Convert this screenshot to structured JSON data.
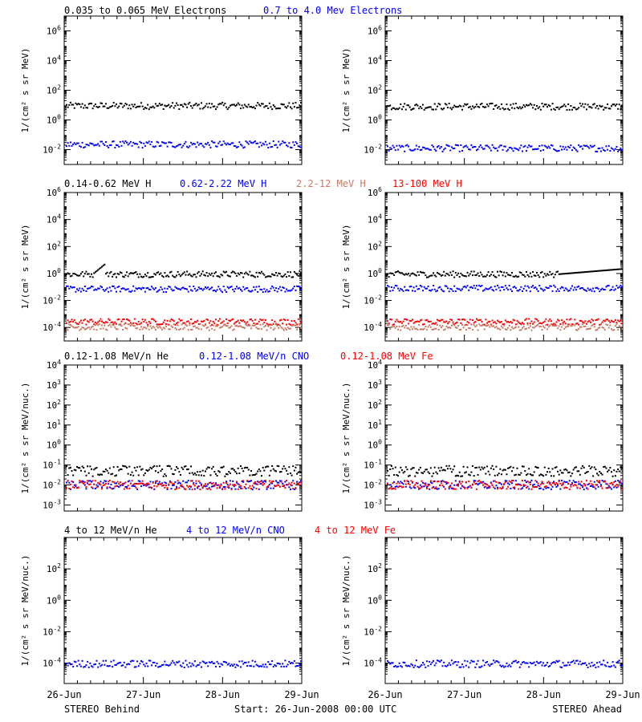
{
  "figure": {
    "start_label": "Start: 26-Jun-2008 00:00 UTC",
    "left_footer": "STEREO Behind",
    "right_footer": "STEREO Ahead",
    "x_ticks": [
      "26-Jun",
      "27-Jun",
      "28-Jun",
      "29-Jun"
    ]
  },
  "colors": {
    "black": "#000000",
    "blue": "#0000ff",
    "salmon": "#c87a64",
    "red": "#ff0000"
  },
  "chart_data": [
    {
      "type": "scatter",
      "panel": "row1",
      "titles": [
        {
          "text": "0.035 to 0.065 MeV Electrons",
          "color": "#000000"
        },
        {
          "text": "0.7 to 4.0 Mev Electrons",
          "color": "#0000ff"
        }
      ],
      "ylabel": "1/(cm² s sr MeV)",
      "yscale": "log",
      "ylim_exp": [
        -3,
        7
      ],
      "yticks": [
        {
          "exp": -2,
          "label": "10-2"
        },
        {
          "exp": 0,
          "label": "100"
        },
        {
          "exp": 2,
          "label": "102"
        },
        {
          "exp": 4,
          "label": "104"
        },
        {
          "exp": 6,
          "label": "106"
        }
      ],
      "xlim": [
        "26-Jun-2008",
        "29-Jun-2008"
      ],
      "series": [
        {
          "color": "#000000",
          "level_behind": 10,
          "level_ahead": 9
        },
        {
          "color": "#0000ff",
          "level_behind": 0.025,
          "level_ahead": 0.014
        }
      ]
    },
    {
      "type": "scatter",
      "panel": "row2",
      "titles": [
        {
          "text": "0.14-0.62 MeV H",
          "color": "#000000"
        },
        {
          "text": "0.62-2.22 MeV H",
          "color": "#0000ff"
        },
        {
          "text": "2.2-12 MeV H",
          "color": "#c87a64"
        },
        {
          "text": "13-100 MeV H",
          "color": "#ff0000"
        }
      ],
      "ylabel": "1/(cm² s sr MeV)",
      "yscale": "log",
      "ylim_exp": [
        -5,
        6
      ],
      "yticks": [
        {
          "exp": -4,
          "label": "10-4"
        },
        {
          "exp": -2,
          "label": "10-2"
        },
        {
          "exp": 0,
          "label": "100"
        },
        {
          "exp": 2,
          "label": "102"
        },
        {
          "exp": 4,
          "label": "104"
        },
        {
          "exp": 6,
          "label": "106"
        }
      ],
      "xlim": [
        "26-Jun-2008",
        "29-Jun-2008"
      ],
      "series": [
        {
          "color": "#000000",
          "level_behind": 1.0,
          "level_ahead": 1.0
        },
        {
          "color": "#0000ff",
          "level_behind": 0.08,
          "level_ahead": 0.09
        },
        {
          "color": "#ff0000",
          "level_behind": 0.0003,
          "level_ahead": 0.0003
        },
        {
          "color": "#c87a64",
          "level_behind": 0.00012,
          "level_ahead": 0.00012
        }
      ]
    },
    {
      "type": "scatter",
      "panel": "row3",
      "titles": [
        {
          "text": "0.12-1.08 MeV/n He",
          "color": "#000000"
        },
        {
          "text": "0.12-1.08 MeV/n CNO",
          "color": "#0000ff"
        },
        {
          "text": "0.12-1.08 MeV Fe",
          "color": "#ff0000"
        }
      ],
      "ylabel": "1/(cm² s sr MeV/nuc.)",
      "yscale": "log",
      "ylim_exp": [
        -3.3,
        4
      ],
      "yticks": [
        {
          "exp": -3,
          "label": "10-3"
        },
        {
          "exp": -2,
          "label": "10-2"
        },
        {
          "exp": -1,
          "label": "10-1"
        },
        {
          "exp": 0,
          "label": "100"
        },
        {
          "exp": 1,
          "label": "101"
        },
        {
          "exp": 2,
          "label": "102"
        },
        {
          "exp": 3,
          "label": "103"
        },
        {
          "exp": 4,
          "label": "104"
        }
      ],
      "xlim": [
        "26-Jun-2008",
        "29-Jun-2008"
      ],
      "series": [
        {
          "color": "#000000",
          "level_behind": 0.05,
          "level_ahead": 0.05
        },
        {
          "color": "#0000ff",
          "level_behind": 0.011,
          "level_ahead": 0.011
        },
        {
          "color": "#ff0000",
          "level_behind": 0.011,
          "level_ahead": 0.011
        }
      ]
    },
    {
      "type": "scatter",
      "panel": "row4",
      "titles": [
        {
          "text": "4 to 12 MeV/n He",
          "color": "#000000"
        },
        {
          "text": "4 to 12 MeV/n CNO",
          "color": "#0000ff"
        },
        {
          "text": "4 to 12 MeV Fe",
          "color": "#ff0000"
        }
      ],
      "ylabel": "1/(cm² s sr MeV/nuc.)",
      "yscale": "log",
      "ylim_exp": [
        -5.3,
        4
      ],
      "yticks": [
        {
          "exp": -4,
          "label": "10-4"
        },
        {
          "exp": -2,
          "label": "10-2"
        },
        {
          "exp": 0,
          "label": "100"
        },
        {
          "exp": 2,
          "label": "102"
        }
      ],
      "xlim": [
        "26-Jun-2008",
        "29-Jun-2008"
      ],
      "series": [
        {
          "color": "#0000ff",
          "level_behind": 0.0001,
          "level_ahead": 0.0001
        }
      ]
    }
  ]
}
